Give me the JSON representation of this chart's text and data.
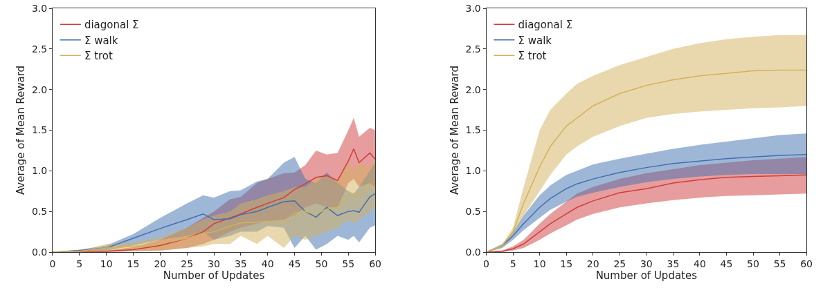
{
  "chart_data": [
    {
      "type": "line",
      "xlabel": "Number of Updates",
      "ylabel": "Average of Mean Reward",
      "xlim": [
        0,
        60
      ],
      "xticks": [
        0,
        5,
        10,
        15,
        20,
        25,
        30,
        35,
        40,
        45,
        50,
        55,
        60
      ],
      "ylim": [
        0,
        3
      ],
      "yticks": [
        {
          "value": 0,
          "label": "0.0"
        },
        {
          "value": 0.5,
          "label": "0.5"
        },
        {
          "value": 1,
          "label": "1.0"
        },
        {
          "value": 1.5,
          "label": "1.5"
        },
        {
          "value": 2,
          "label": "2.0"
        },
        {
          "value": 2.5,
          "label": "2.5"
        },
        {
          "value": 3,
          "label": "3.0"
        }
      ],
      "grid": false,
      "legend": "top left",
      "series": [
        {
          "name": "diagonal Σ",
          "color": "#d03c3c",
          "x": [
            0,
            5,
            10,
            15,
            20,
            25,
            28,
            30,
            33,
            35,
            38,
            40,
            43,
            45,
            47,
            49,
            51,
            53,
            55,
            56,
            57,
            59,
            60
          ],
          "values": [
            0,
            0.01,
            0.01,
            0.03,
            0.08,
            0.17,
            0.25,
            0.35,
            0.42,
            0.47,
            0.55,
            0.6,
            0.67,
            0.77,
            0.84,
            0.92,
            0.94,
            0.88,
            1.12,
            1.27,
            1.1,
            1.22,
            1.14
          ],
          "lower": [
            0,
            0,
            0,
            0.01,
            0.02,
            0.05,
            0.1,
            0.15,
            0.25,
            0.3,
            0.35,
            0.38,
            0.4,
            0.45,
            0.55,
            0.6,
            0.55,
            0.55,
            0.85,
            0.9,
            0.8,
            0.85,
            0.8
          ],
          "upper": [
            0,
            0.01,
            0.02,
            0.06,
            0.15,
            0.3,
            0.42,
            0.5,
            0.65,
            0.68,
            0.85,
            0.9,
            0.97,
            0.98,
            1.07,
            1.25,
            1.2,
            1.22,
            1.5,
            1.65,
            1.42,
            1.53,
            1.5
          ]
        },
        {
          "name": "Σ walk",
          "color": "#3f6fb0",
          "x": [
            0,
            5,
            10,
            15,
            20,
            25,
            28,
            30,
            33,
            35,
            38,
            40,
            43,
            45,
            47,
            49,
            51,
            53,
            55,
            56,
            57,
            59,
            60
          ],
          "values": [
            0,
            0.02,
            0.05,
            0.17,
            0.29,
            0.4,
            0.47,
            0.4,
            0.41,
            0.46,
            0.5,
            0.55,
            0.62,
            0.63,
            0.5,
            0.43,
            0.55,
            0.45,
            0.5,
            0.51,
            0.49,
            0.68,
            0.72
          ],
          "lower": [
            0,
            0.01,
            0.02,
            0.08,
            0.15,
            0.2,
            0.25,
            0.15,
            0.2,
            0.25,
            0.25,
            0.32,
            0.3,
            0.05,
            0.2,
            0.03,
            0.1,
            0.2,
            0.15,
            0.2,
            0.12,
            0.3,
            0.33
          ],
          "upper": [
            0,
            0.03,
            0.08,
            0.22,
            0.42,
            0.6,
            0.7,
            0.67,
            0.75,
            0.76,
            0.87,
            0.9,
            1.1,
            1.17,
            0.9,
            0.85,
            0.98,
            0.85,
            0.75,
            0.72,
            0.8,
            1.0,
            1.1
          ]
        },
        {
          "name": "Σ trot",
          "color": "#d4b25c",
          "x": [
            0,
            5,
            10,
            15,
            20,
            25,
            28,
            30,
            33,
            35,
            38,
            40,
            43,
            45,
            47,
            49,
            51,
            53,
            55,
            56,
            57,
            59,
            60
          ],
          "values": [
            0,
            0.01,
            0.05,
            0.07,
            0.1,
            0.17,
            0.23,
            0.25,
            0.32,
            0.36,
            0.37,
            0.38,
            0.37,
            0.48,
            0.5,
            0.47,
            0.53,
            0.55,
            0.69,
            0.71,
            0.69,
            0.84,
            0.78
          ],
          "lower": [
            0,
            0,
            0,
            0.01,
            0.02,
            0.05,
            0.07,
            0.1,
            0.1,
            0.2,
            0.1,
            0.2,
            0.05,
            0.2,
            0.15,
            0.2,
            0.25,
            0.3,
            0.4,
            0.35,
            0.4,
            0.5,
            0.55
          ],
          "upper": [
            0,
            0.01,
            0.1,
            0.12,
            0.18,
            0.3,
            0.4,
            0.45,
            0.5,
            0.6,
            0.65,
            0.7,
            0.75,
            0.8,
            0.8,
            0.9,
            0.95,
            0.88,
            1.1,
            1.0,
            1.1,
            1.05,
            1.15
          ]
        }
      ]
    },
    {
      "type": "line",
      "xlabel": "Number of Updates",
      "ylabel": "Average of Mean Reward",
      "xlim": [
        0,
        60
      ],
      "xticks": [
        0,
        5,
        10,
        15,
        20,
        25,
        30,
        35,
        40,
        45,
        50,
        55,
        60
      ],
      "ylim": [
        0,
        3
      ],
      "yticks": [
        {
          "value": 0,
          "label": "0.0"
        },
        {
          "value": 0.5,
          "label": "0.5"
        },
        {
          "value": 1,
          "label": "1.0"
        },
        {
          "value": 1.5,
          "label": "1.5"
        },
        {
          "value": 2,
          "label": "2.0"
        },
        {
          "value": 2.5,
          "label": "2.5"
        },
        {
          "value": 3,
          "label": "3.0"
        }
      ],
      "grid": false,
      "legend": "top left",
      "series": [
        {
          "name": "diagonal Σ",
          "color": "#d03c3c",
          "x": [
            0,
            3,
            5,
            7,
            10,
            12,
            15,
            17,
            20,
            25,
            30,
            35,
            40,
            45,
            50,
            55,
            60
          ],
          "values": [
            0,
            0.01,
            0.04,
            0.1,
            0.25,
            0.35,
            0.47,
            0.55,
            0.63,
            0.73,
            0.78,
            0.85,
            0.89,
            0.92,
            0.93,
            0.94,
            0.95
          ],
          "lower": [
            0,
            0,
            0.02,
            0.05,
            0.15,
            0.23,
            0.33,
            0.4,
            0.47,
            0.55,
            0.6,
            0.64,
            0.67,
            0.69,
            0.7,
            0.71,
            0.72
          ],
          "upper": [
            0,
            0.02,
            0.07,
            0.15,
            0.35,
            0.47,
            0.62,
            0.72,
            0.8,
            0.9,
            0.97,
            1.02,
            1.07,
            1.1,
            1.13,
            1.15,
            1.17
          ]
        },
        {
          "name": "Σ walk",
          "color": "#3f6fb0",
          "x": [
            0,
            3,
            5,
            7,
            10,
            12,
            15,
            17,
            20,
            25,
            30,
            35,
            40,
            45,
            50,
            55,
            60
          ],
          "values": [
            0,
            0.08,
            0.2,
            0.35,
            0.55,
            0.66,
            0.78,
            0.84,
            0.9,
            0.98,
            1.04,
            1.09,
            1.12,
            1.15,
            1.17,
            1.19,
            1.2
          ],
          "lower": [
            0,
            0.05,
            0.15,
            0.27,
            0.42,
            0.52,
            0.62,
            0.68,
            0.73,
            0.8,
            0.86,
            0.9,
            0.93,
            0.95,
            0.96,
            0.96,
            0.96
          ],
          "upper": [
            0,
            0.1,
            0.25,
            0.45,
            0.7,
            0.82,
            0.95,
            1.0,
            1.08,
            1.15,
            1.21,
            1.27,
            1.32,
            1.36,
            1.4,
            1.44,
            1.46
          ]
        },
        {
          "name": "Σ trot",
          "color": "#d4b25c",
          "x": [
            0,
            3,
            5,
            7,
            10,
            12,
            15,
            17,
            20,
            25,
            30,
            35,
            40,
            45,
            50,
            55,
            60
          ],
          "values": [
            0,
            0.08,
            0.25,
            0.6,
            1.05,
            1.3,
            1.55,
            1.65,
            1.8,
            1.95,
            2.05,
            2.12,
            2.17,
            2.2,
            2.23,
            2.24,
            2.24
          ],
          "lower": [
            0,
            0.05,
            0.2,
            0.45,
            0.75,
            0.95,
            1.2,
            1.3,
            1.42,
            1.55,
            1.65,
            1.7,
            1.73,
            1.75,
            1.77,
            1.78,
            1.8
          ],
          "upper": [
            0,
            0.1,
            0.3,
            0.8,
            1.5,
            1.75,
            1.95,
            2.07,
            2.17,
            2.3,
            2.4,
            2.5,
            2.57,
            2.62,
            2.65,
            2.67,
            2.67
          ]
        }
      ]
    }
  ]
}
